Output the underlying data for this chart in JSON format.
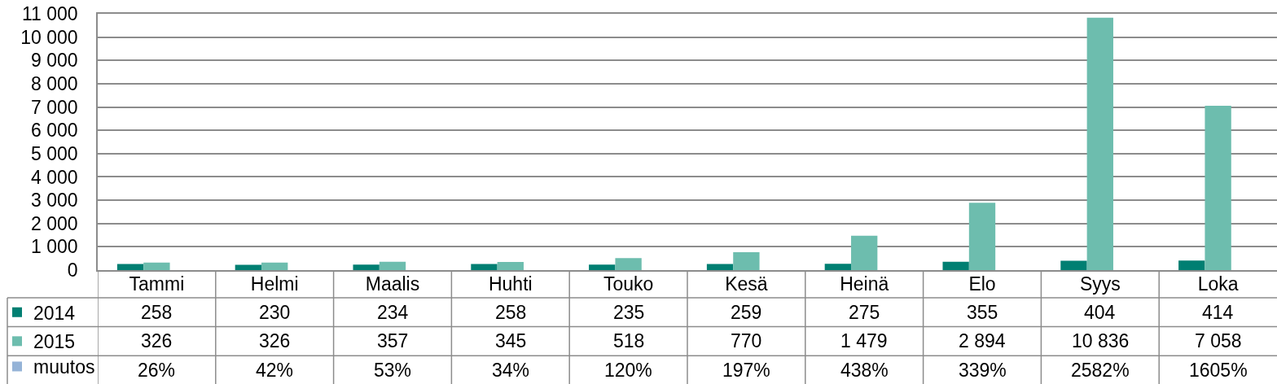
{
  "chart_data": {
    "type": "bar",
    "categories": [
      "Tammi",
      "Helmi",
      "Maalis",
      "Huhti",
      "Touko",
      "Kesä",
      "Heinä",
      "Elo",
      "Syys",
      "Loka"
    ],
    "series": [
      {
        "name": "2014",
        "color": "#007f72",
        "values": [
          258,
          230,
          234,
          258,
          235,
          259,
          275,
          355,
          404,
          414
        ],
        "value_labels": [
          "258",
          "230",
          "234",
          "258",
          "235",
          "259",
          "275",
          "355",
          "404",
          "414"
        ]
      },
      {
        "name": "2015",
        "color": "#6dbdae",
        "values": [
          326,
          326,
          357,
          345,
          518,
          770,
          1479,
          2894,
          10836,
          7058
        ],
        "value_labels": [
          "326",
          "326",
          "357",
          "345",
          "518",
          "770",
          "1 479",
          "2 894",
          "10 836",
          "7 058"
        ]
      },
      {
        "name": "muutos",
        "color": "#95b3d7",
        "values": [
          null,
          null,
          null,
          null,
          null,
          null,
          null,
          null,
          null,
          null
        ],
        "value_labels": [
          "26%",
          "42%",
          "53%",
          "34%",
          "120%",
          "197%",
          "438%",
          "339%",
          "2582%",
          "1605%"
        ]
      }
    ],
    "ylim": [
      0,
      11000
    ],
    "yticks": [
      0,
      {
        "value": 1000,
        "label": "1 000"
      },
      {
        "value": 2000,
        "label": "2 000"
      },
      {
        "value": 3000,
        "label": "3 000"
      },
      {
        "value": 4000,
        "label": "4 000"
      },
      {
        "value": 5000,
        "label": "5 000"
      },
      {
        "value": 6000,
        "label": "6 000"
      },
      {
        "value": 7000,
        "label": "7 000"
      },
      {
        "value": 8000,
        "label": "8 000"
      },
      {
        "value": 9000,
        "label": "9 000"
      },
      {
        "value": 10000,
        "label": "10 000"
      },
      {
        "value": 11000,
        "label": "11 000"
      }
    ],
    "grid": "y",
    "legend": "bottom left"
  }
}
